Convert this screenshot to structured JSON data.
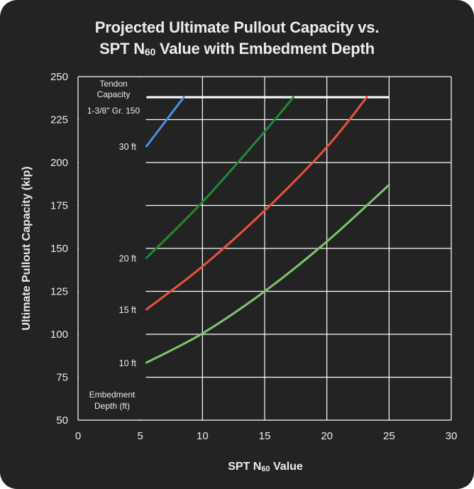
{
  "chart_data": {
    "type": "line",
    "title_line1": "Projected Ultimate Pullout Capacity vs.",
    "title_line2_pre": "SPT N",
    "title_line2_sub": "60",
    "title_line2_post": " Value with Embedment Depth",
    "xlabel_pre": "SPT N",
    "xlabel_sub": "60",
    "xlabel_post": " Value",
    "ylabel": "Ultimate Pullout Capacity (kip)",
    "xlim": [
      0,
      30
    ],
    "ylim": [
      50,
      250
    ],
    "xticks": [
      0,
      5,
      10,
      15,
      20,
      25,
      30
    ],
    "yticks": [
      50,
      75,
      100,
      125,
      150,
      175,
      200,
      225,
      250
    ],
    "grid": true,
    "colors": {
      "background": "#232323",
      "text": "#ececec",
      "grid": "#ffffff",
      "tendon": "#ffffff"
    },
    "tendon": {
      "value": 238,
      "x": [
        5.5,
        25
      ],
      "label_lines": [
        "Tendon",
        "Capacity",
        "1-3/8\" Gr. 150"
      ]
    },
    "series": [
      {
        "name": "10 ft",
        "color": "#7ec46c",
        "x": [
          5.5,
          10,
          15,
          20,
          25
        ],
        "y": [
          83.5,
          100.5,
          125,
          154,
          187
        ]
      },
      {
        "name": "15 ft",
        "color": "#e8523e",
        "x": [
          5.5,
          10,
          15,
          20,
          23.2
        ],
        "y": [
          114.5,
          139.5,
          172,
          209,
          238
        ]
      },
      {
        "name": "20 ft",
        "color": "#1d8a3b",
        "x": [
          5.5,
          10,
          15,
          17.3
        ],
        "y": [
          144.5,
          177,
          218,
          238
        ]
      },
      {
        "name": "30 ft",
        "color": "#4a90e2",
        "x": [
          5.5,
          8.5
        ],
        "y": [
          209.5,
          238
        ]
      }
    ],
    "legend_label_lines": [
      "Embedment",
      "Depth (ft)"
    ]
  }
}
